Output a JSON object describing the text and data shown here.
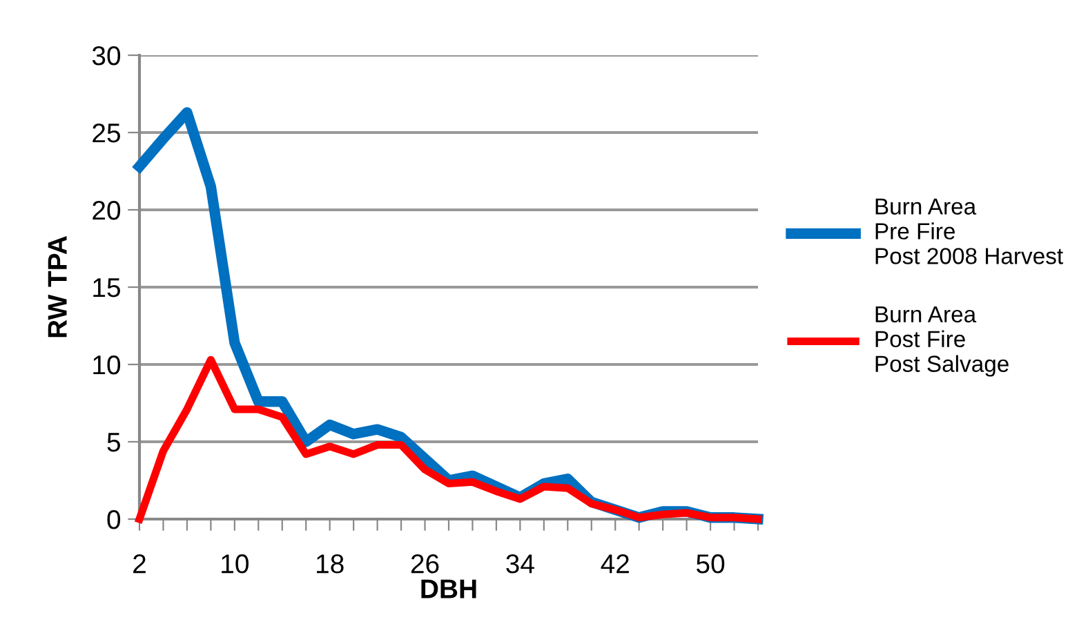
{
  "chart_data": {
    "type": "line",
    "xlabel": "DBH",
    "ylabel": "RW TPA",
    "x": [
      2,
      4,
      6,
      8,
      10,
      12,
      14,
      16,
      18,
      20,
      22,
      24,
      26,
      28,
      30,
      32,
      34,
      36,
      38,
      40,
      42,
      44,
      46,
      48,
      50,
      52,
      54
    ],
    "series": [
      {
        "name": "Burn Area\nPre Fire\nPost 2008 Harvest",
        "color": "#0070c0",
        "values": [
          22.8,
          24.6,
          26.3,
          21.5,
          11.4,
          7.6,
          7.6,
          5.0,
          6.1,
          5.5,
          5.8,
          5.3,
          3.9,
          2.5,
          2.8,
          2.1,
          1.4,
          2.3,
          2.6,
          1.1,
          0.6,
          0.1,
          0.5,
          0.5,
          0.1,
          0.1,
          0.0
        ]
      },
      {
        "name": "Burn Area\nPost Fire\nPost Salvage",
        "color": "#ff0000",
        "values": [
          0.0,
          4.4,
          7.1,
          10.3,
          7.1,
          7.1,
          6.6,
          4.2,
          4.7,
          4.2,
          4.8,
          4.8,
          3.2,
          2.3,
          2.4,
          1.8,
          1.3,
          2.1,
          2.0,
          1.0,
          0.6,
          0.1,
          0.3,
          0.4,
          0.1,
          0.1,
          0.0
        ]
      }
    ],
    "xlim": [
      2,
      54
    ],
    "xticks": [
      2,
      {
        "value": 4,
        "label": null
      },
      {
        "value": 6,
        "label": null
      },
      {
        "value": 8,
        "label": null
      },
      10,
      {
        "value": 12,
        "label": null
      },
      {
        "value": 14,
        "label": null
      },
      {
        "value": 16,
        "label": null
      },
      18,
      {
        "value": 20,
        "label": null
      },
      {
        "value": 22,
        "label": null
      },
      {
        "value": 24,
        "label": null
      },
      26,
      {
        "value": 28,
        "label": null
      },
      {
        "value": 30,
        "label": null
      },
      {
        "value": 32,
        "label": null
      },
      34,
      {
        "value": 36,
        "label": null
      },
      {
        "value": 38,
        "label": null
      },
      {
        "value": 40,
        "label": null
      },
      42,
      {
        "value": 44,
        "label": null
      },
      {
        "value": 46,
        "label": null
      },
      {
        "value": 48,
        "label": null
      },
      50,
      {
        "value": 52,
        "label": null
      },
      {
        "value": 54,
        "label": null
      }
    ],
    "ylim": [
      0,
      30
    ],
    "yticks": [
      0,
      5,
      10,
      15,
      20,
      25,
      30
    ],
    "grid": "y",
    "legend": "right",
    "marker": "none",
    "line_style": "solid"
  }
}
